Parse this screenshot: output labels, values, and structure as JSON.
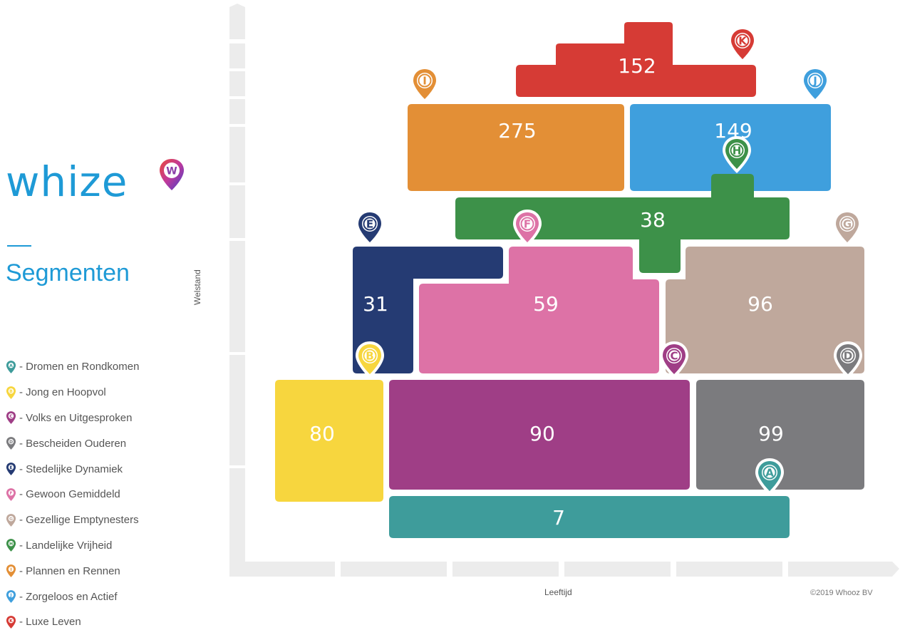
{
  "brand": {
    "name": "whize",
    "pin_letter": "W"
  },
  "title": "Segmenten",
  "legend": [
    {
      "letter": "A",
      "label": "- Dromen en Rondkomen",
      "color": "#3e9c9b"
    },
    {
      "letter": "B",
      "label": "- Jong en Hoopvol",
      "color": "#f7d63e"
    },
    {
      "letter": "C",
      "label": "- Volks en Uitgesproken",
      "color": "#9f3e86"
    },
    {
      "letter": "D",
      "label": "- Bescheiden Ouderen",
      "color": "#7b7b7e"
    },
    {
      "letter": "E",
      "label": "- Stedelijke Dynamiek",
      "color": "#253b73"
    },
    {
      "letter": "F",
      "label": "- Gewoon Gemiddeld",
      "color": "#dd72a6"
    },
    {
      "letter": "G",
      "label": "- Gezellige Emptynesters",
      "color": "#bfa89c"
    },
    {
      "letter": "H",
      "label": "- Landelijke Vrijheid",
      "color": "#3d9149"
    },
    {
      "letter": "I",
      "label": "- Plannen en Rennen",
      "color": "#e38f36"
    },
    {
      "letter": "J",
      "label": "- Zorgeloos en Actief",
      "color": "#3f9fdd"
    },
    {
      "letter": "K",
      "label": "- Luxe Leven",
      "color": "#d63b35"
    }
  ],
  "axes": {
    "y": "Welstand",
    "x": "Leeftijd"
  },
  "copyright": "©2019 Whooz BV",
  "segments": [
    {
      "id": "A",
      "value": "7"
    },
    {
      "id": "B",
      "value": "80"
    },
    {
      "id": "C",
      "value": "90"
    },
    {
      "id": "D",
      "value": "99"
    },
    {
      "id": "E",
      "value": "31"
    },
    {
      "id": "F",
      "value": "59"
    },
    {
      "id": "G",
      "value": "96"
    },
    {
      "id": "H",
      "value": "38"
    },
    {
      "id": "I",
      "value": "275"
    },
    {
      "id": "J",
      "value": "149"
    },
    {
      "id": "K",
      "value": "152"
    }
  ]
}
